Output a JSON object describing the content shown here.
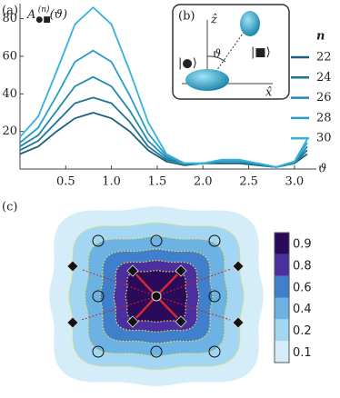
{
  "chart_data": [
    {
      "type": "line",
      "panel_label": "(a)",
      "y_label": {
        "base": "A",
        "sub": "●■",
        "sup": "(n)",
        "arg": "(ϑ)"
      },
      "x_label": "ϑ",
      "legend_title": "n",
      "x": [
        0,
        0.2,
        0.4,
        0.6,
        0.8,
        1.0,
        1.2,
        1.4,
        1.6,
        1.8,
        2.0,
        2.2,
        2.4,
        2.6,
        2.8,
        3.0,
        3.14
      ],
      "series": [
        {
          "name": "22",
          "color": "#1b5f7a",
          "values": [
            8,
            12,
            20,
            27,
            30,
            27,
            20,
            10,
            4,
            2,
            3,
            3,
            3,
            2,
            1,
            3,
            8
          ]
        },
        {
          "name": "24",
          "color": "#1f7394",
          "values": [
            10,
            15,
            25,
            35,
            38,
            35,
            25,
            12,
            5,
            3,
            3,
            4,
            4,
            2,
            1,
            3,
            10
          ]
        },
        {
          "name": "26",
          "color": "#2388ad",
          "values": [
            12,
            18,
            31,
            44,
            49,
            44,
            31,
            15,
            6,
            3,
            3,
            4,
            4,
            3,
            1,
            3,
            12
          ]
        },
        {
          "name": "28",
          "color": "#2a9dc6",
          "values": [
            14,
            22,
            39,
            57,
            63,
            57,
            39,
            19,
            7,
            3,
            3,
            4,
            4,
            3,
            1,
            4,
            14
          ]
        },
        {
          "name": "30",
          "color": "#36b1dc",
          "values": [
            17,
            28,
            52,
            77,
            86,
            77,
            52,
            25,
            8,
            3,
            3,
            5,
            5,
            3,
            1,
            4,
            16
          ]
        }
      ],
      "xlim": [
        0,
        3.2
      ],
      "xticks": [
        0.5,
        {
          "value": 1.0,
          "label": "1.0"
        },
        1.5,
        {
          "value": 2.0,
          "label": "2.0"
        },
        2.5,
        {
          "value": 3.0,
          "label": "3.0"
        }
      ],
      "ylim": [
        0,
        88
      ],
      "yticks": [
        20,
        40,
        60,
        80
      ],
      "inset": {
        "label": "(b)",
        "z_axis": "ẑ",
        "x_axis": "x̂",
        "angle": "ϑ",
        "state_circle": "|●⟩",
        "state_square": "|■⟩"
      }
    },
    {
      "type": "contour",
      "panel_label": "(c)",
      "levels": [
        0.1,
        0.2,
        0.4,
        0.6,
        0.8,
        0.9
      ],
      "colors": [
        "#d4edf9",
        "#a3d6f2",
        "#6cb3e4",
        "#3f7fcb",
        "#4b2f9f",
        "#2a0b5b"
      ]
    }
  ]
}
